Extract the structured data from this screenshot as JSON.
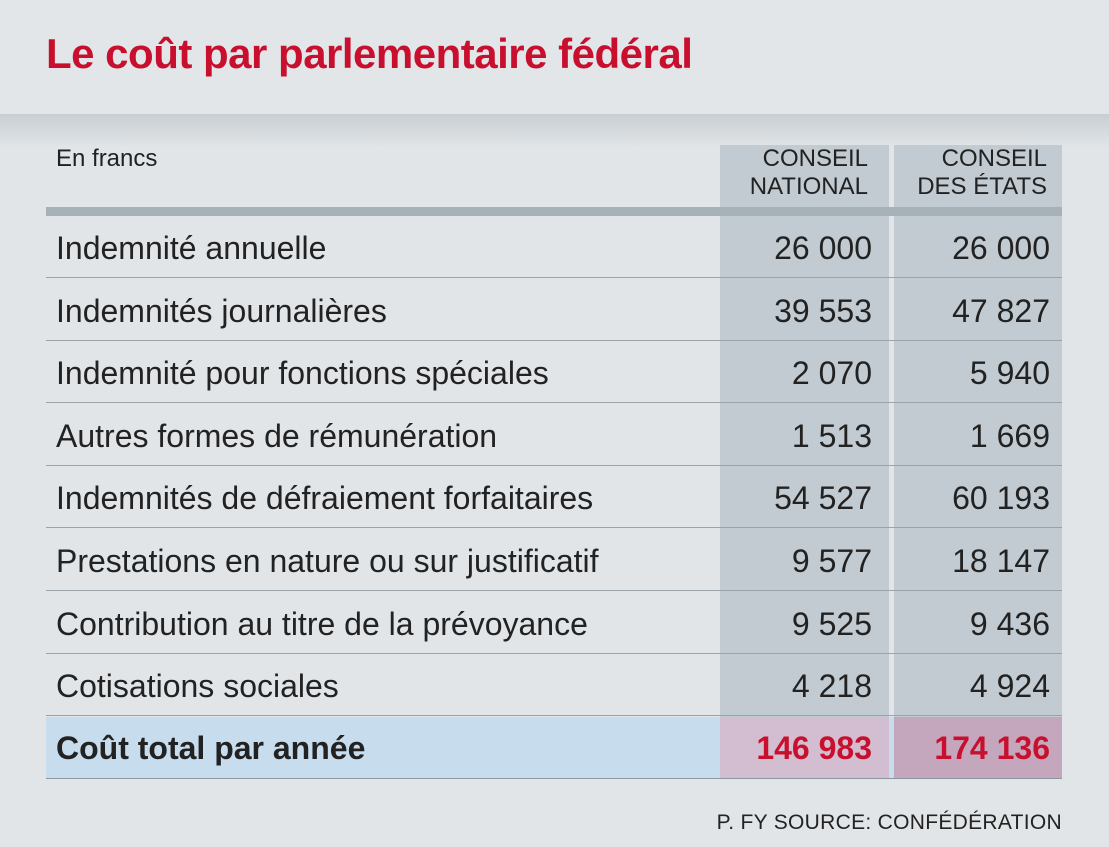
{
  "chart_data": {
    "type": "table",
    "title": "Le coût par parlementaire fédéral",
    "unit_label": "En francs",
    "columns": [
      {
        "line1": "CONSEIL",
        "line2": "NATIONAL"
      },
      {
        "line1": "CONSEIL",
        "line2": "DES ÉTATS"
      }
    ],
    "rows": [
      {
        "label": "Indemnité annuelle",
        "values": [
          "26 000",
          "26 000"
        ]
      },
      {
        "label": "Indemnités journalières",
        "values": [
          "39 553",
          "47 827"
        ]
      },
      {
        "label": "Indemnité pour fonctions spéciales",
        "values": [
          "2 070",
          "5 940"
        ]
      },
      {
        "label": "Autres formes de rémunération",
        "values": [
          "1 513",
          "1 669"
        ]
      },
      {
        "label": "Indemnités de défraiement forfaitaires",
        "values": [
          "54 527",
          "60 193"
        ]
      },
      {
        "label": "Prestations en nature ou sur justificatif",
        "values": [
          "9 577",
          "18 147"
        ]
      },
      {
        "label": "Contribution au titre de la prévoyance",
        "values": [
          "9 525",
          "9 436"
        ]
      },
      {
        "label": "Cotisations sociales",
        "values": [
          "4 218",
          "4 924"
        ]
      }
    ],
    "total": {
      "label": "Coût total par année",
      "values": [
        "146 983",
        "174 136"
      ]
    },
    "source": "P. FY SOURCE: CONFÉDÉRATION",
    "colors": {
      "title": "#c8102e",
      "total_values": "#c8102e",
      "column_shade": "#c2cbd1",
      "total_row": "#c7dcec"
    }
  }
}
